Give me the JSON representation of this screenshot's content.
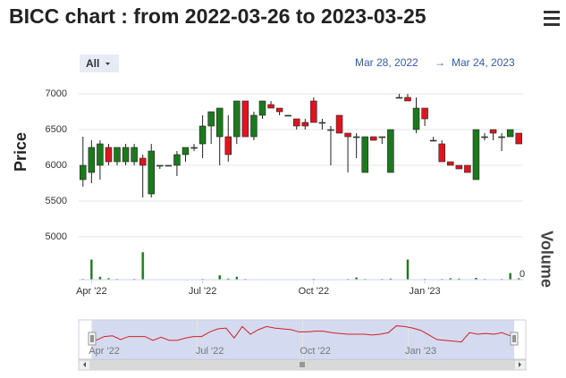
{
  "chart_data": {
    "type": "candlestick",
    "title": "BICC chart : from 2022-03-26 to 2023-03-25",
    "range_button": "All",
    "range_from": "Mar 28, 2022",
    "range_to": "Mar 24, 2023",
    "y_label": "Price",
    "y2_label": "Volume",
    "categories": [
      null,
      "Apr '22",
      null,
      null,
      null,
      null,
      null,
      null,
      null,
      null,
      null,
      null,
      null,
      null,
      "Jul '22",
      null,
      null,
      null,
      null,
      null,
      null,
      null,
      null,
      null,
      null,
      null,
      null,
      "Oct '22",
      null,
      null,
      null,
      null,
      null,
      null,
      null,
      null,
      null,
      null,
      null,
      null,
      "Jan '23",
      null,
      null,
      null,
      null,
      null,
      null,
      null,
      null,
      null,
      null,
      null
    ],
    "open": [
      5800,
      5900,
      6000,
      6250,
      6050,
      6050,
      6050,
      6100,
      5600,
      6000,
      6000,
      6000,
      6150,
      6250,
      6300,
      6550,
      6400,
      6400,
      6400,
      6900,
      6400,
      6700,
      6850,
      6800,
      6700,
      6650,
      6600,
      6900,
      6600,
      6500,
      6700,
      6450,
      6400,
      5900,
      6400,
      6400,
      5900,
      6950,
      6950,
      6500,
      6800,
      6350,
      6300,
      6050,
      6000,
      6000,
      5800,
      6400,
      6500,
      6400,
      6400,
      6450
    ],
    "high": [
      6400,
      6350,
      6350,
      6300,
      6250,
      6300,
      6300,
      6150,
      6300,
      6000,
      6000,
      6200,
      6250,
      6300,
      6700,
      6750,
      6800,
      6700,
      6900,
      6900,
      6750,
      6900,
      6900,
      6800,
      6700,
      6650,
      6650,
      6950,
      6650,
      6550,
      6700,
      6450,
      6450,
      6400,
      6400,
      6400,
      6500,
      7000,
      7000,
      6950,
      6800,
      6400,
      6350,
      6050,
      6000,
      6000,
      6500,
      6450,
      6500,
      6450,
      6500,
      6450
    ],
    "low": [
      5700,
      5750,
      5800,
      6000,
      6000,
      6000,
      6000,
      5550,
      5550,
      5950,
      6000,
      5850,
      6050,
      6200,
      6100,
      6300,
      6000,
      6050,
      6300,
      6400,
      6350,
      6650,
      6800,
      6700,
      6700,
      6500,
      6500,
      6600,
      6500,
      6000,
      6450,
      5900,
      6100,
      5900,
      6350,
      6300,
      5900,
      6950,
      6900,
      6450,
      6550,
      6350,
      6050,
      6000,
      5950,
      5900,
      5800,
      6350,
      6350,
      6200,
      6400,
      6300
    ],
    "close": [
      6000,
      6250,
      6300,
      6050,
      6250,
      6250,
      6250,
      6000,
      6200,
      6000,
      6000,
      6150,
      6250,
      6250,
      6550,
      6750,
      6800,
      6150,
      6900,
      6400,
      6700,
      6900,
      6800,
      6750,
      6700,
      6550,
      6550,
      6600,
      6600,
      6500,
      6450,
      6400,
      6400,
      6400,
      6350,
      6400,
      6500,
      6950,
      6900,
      6800,
      6650,
      6350,
      6050,
      6000,
      5950,
      5900,
      6500,
      6400,
      6450,
      6400,
      6500,
      6300
    ],
    "volume": [
      2,
      55,
      8,
      4,
      2,
      1,
      2,
      75,
      1,
      0,
      0,
      0,
      1,
      0,
      2,
      0,
      12,
      3,
      8,
      2,
      1,
      0,
      1,
      0,
      0,
      1,
      0,
      2,
      0,
      1,
      0,
      2,
      6,
      2,
      1,
      2,
      3,
      1,
      55,
      1,
      2,
      1,
      2,
      4,
      3,
      1,
      5,
      2,
      1,
      2,
      18,
      4
    ],
    "ylim": [
      5000,
      7100
    ],
    "yticks": [
      5000,
      5500,
      6000,
      6500,
      7000
    ],
    "y2lim": [
      0,
      100
    ],
    "y2ticks": [
      0
    ],
    "up_color": "#1b7a1b",
    "down_color": "#e0141e",
    "volume_color": "#1b7a1b",
    "navigator_color": "#d22020"
  }
}
